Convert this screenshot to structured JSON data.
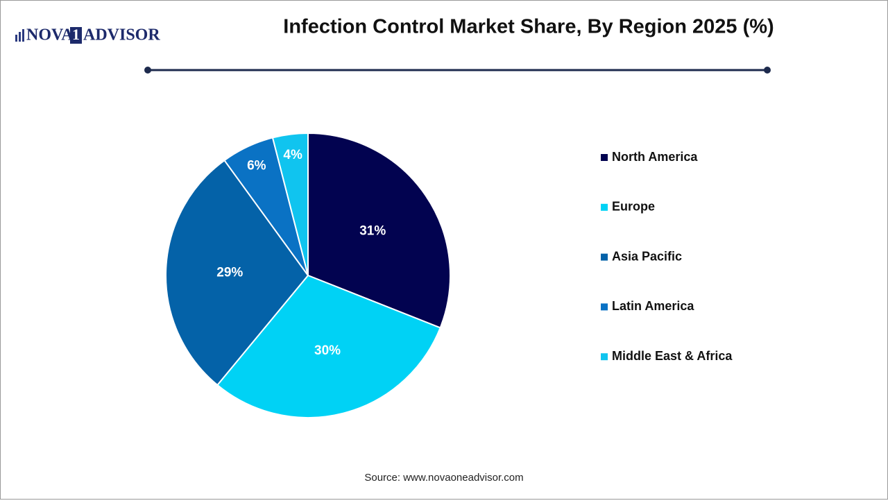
{
  "logo": {
    "left": "NOVA",
    "mark": "1",
    "right": "ADVISOR"
  },
  "chart_data": {
    "type": "pie",
    "title": "Infection Control Market Share, By Region 2025 (%)",
    "categories": [
      "North America",
      "Europe",
      "Asia Pacific",
      "Latin America",
      "Middle East & Africa"
    ],
    "values": [
      31,
      30,
      29,
      6,
      4
    ],
    "value_labels": [
      "31%",
      "30%",
      "29%",
      "6%",
      "4%"
    ],
    "colors": [
      "#020350",
      "#00d2f5",
      "#0462a8",
      "#0a72c4",
      "#10c4ef"
    ],
    "legend": "right"
  },
  "source": "Source: www.novaoneadvisor.com"
}
